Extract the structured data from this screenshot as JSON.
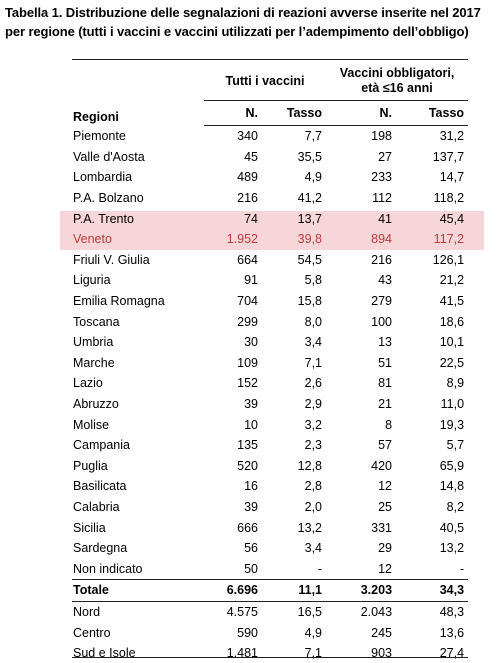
{
  "caption": "Tabella 1. Distribuzione delle segnalazioni di reazioni avverse inserite nel 2017 per regione (tutti i vaccini e vaccini utilizzati per l’adempimento dell’obbligo)",
  "header": {
    "regioni": "Regioni",
    "group1": "Tutti i vaccini",
    "group2_line1": "Vaccini obbligatori,",
    "group2_line2": "età ≤16 anni",
    "n": "N.",
    "tasso": "Tasso"
  },
  "highlight_color": "#f7d6d9",
  "highlight_text_color": "#c0393b",
  "rows": [
    {
      "region": "Piemonte",
      "n1": "340",
      "t1": "7,7",
      "n2": "198",
      "t2": "31,2"
    },
    {
      "region": "Valle d'Aosta",
      "n1": "45",
      "t1": "35,5",
      "n2": "27",
      "t2": "137,7"
    },
    {
      "region": "Lombardia",
      "n1": "489",
      "t1": "4,9",
      "n2": "233",
      "t2": "14,7"
    },
    {
      "region": "P.A. Bolzano",
      "n1": "216",
      "t1": "41,2",
      "n2": "112",
      "t2": "118,2"
    },
    {
      "region": "P.A. Trento",
      "n1": "74",
      "t1": "13,7",
      "n2": "41",
      "t2": "45,4"
    },
    {
      "region": "Veneto",
      "n1": "1.952",
      "t1": "39,8",
      "n2": "894",
      "t2": "117,2"
    },
    {
      "region": "Friuli V. Giulia",
      "n1": "664",
      "t1": "54,5",
      "n2": "216",
      "t2": "126,1"
    },
    {
      "region": "Liguria",
      "n1": "91",
      "t1": "5,8",
      "n2": "43",
      "t2": "21,2"
    },
    {
      "region": "Emilia Romagna",
      "n1": "704",
      "t1": "15,8",
      "n2": "279",
      "t2": "41,5"
    },
    {
      "region": "Toscana",
      "n1": "299",
      "t1": "8,0",
      "n2": "100",
      "t2": "18,6"
    },
    {
      "region": "Umbria",
      "n1": "30",
      "t1": "3,4",
      "n2": "13",
      "t2": "10,1"
    },
    {
      "region": "Marche",
      "n1": "109",
      "t1": "7,1",
      "n2": "51",
      "t2": "22,5"
    },
    {
      "region": "Lazio",
      "n1": "152",
      "t1": "2,6",
      "n2": "81",
      "t2": "8,9"
    },
    {
      "region": "Abruzzo",
      "n1": "39",
      "t1": "2,9",
      "n2": "21",
      "t2": "11,0"
    },
    {
      "region": "Molise",
      "n1": "10",
      "t1": "3,2",
      "n2": "8",
      "t2": "19,3"
    },
    {
      "region": "Campania",
      "n1": "135",
      "t1": "2,3",
      "n2": "57",
      "t2": "5,7"
    },
    {
      "region": "Puglia",
      "n1": "520",
      "t1": "12,8",
      "n2": "420",
      "t2": "65,9"
    },
    {
      "region": "Basilicata",
      "n1": "16",
      "t1": "2,8",
      "n2": "12",
      "t2": "14,8"
    },
    {
      "region": "Calabria",
      "n1": "39",
      "t1": "2,0",
      "n2": "25",
      "t2": "8,2"
    },
    {
      "region": "Sicilia",
      "n1": "666",
      "t1": "13,2",
      "n2": "331",
      "t2": "40,5"
    },
    {
      "region": "Sardegna",
      "n1": "56",
      "t1": "3,4",
      "n2": "29",
      "t2": "13,2"
    },
    {
      "region": "Non indicato",
      "n1": "50",
      "t1": "-",
      "n2": "12",
      "t2": "-"
    }
  ],
  "total": {
    "region": "Totale",
    "n1": "6.696",
    "t1": "11,1",
    "n2": "3.203",
    "t2": "34,3"
  },
  "areas": [
    {
      "region": "Nord",
      "n1": "4.575",
      "t1": "16,5",
      "n2": "2.043",
      "t2": "48,3"
    },
    {
      "region": "Centro",
      "n1": "590",
      "t1": "4,9",
      "n2": "245",
      "t2": "13,6"
    },
    {
      "region": "Sud e Isole",
      "n1": "1.481",
      "t1": "7,1",
      "n2": "903",
      "t2": "27,4"
    }
  ]
}
